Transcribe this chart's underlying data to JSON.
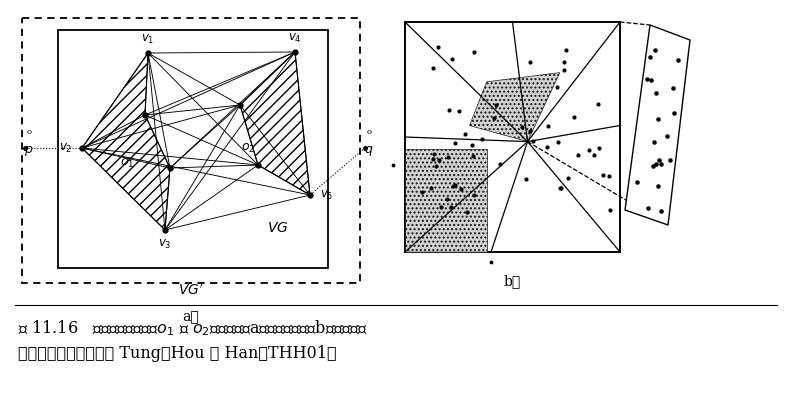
{
  "fig_bg": "#f0f0e8",
  "inner_bg": "#ffffff",
  "caption1": "图 11.16   含有障碍物对象（o₁ 和 o₂）的聚类：a）一个可见图；b）含有微簇",
  "caption2": "区域的三角划分。取自 Tung、Hou 和 Han［THH01］",
  "hatch_color": "#555555",
  "stipple_color": "#cccccc"
}
